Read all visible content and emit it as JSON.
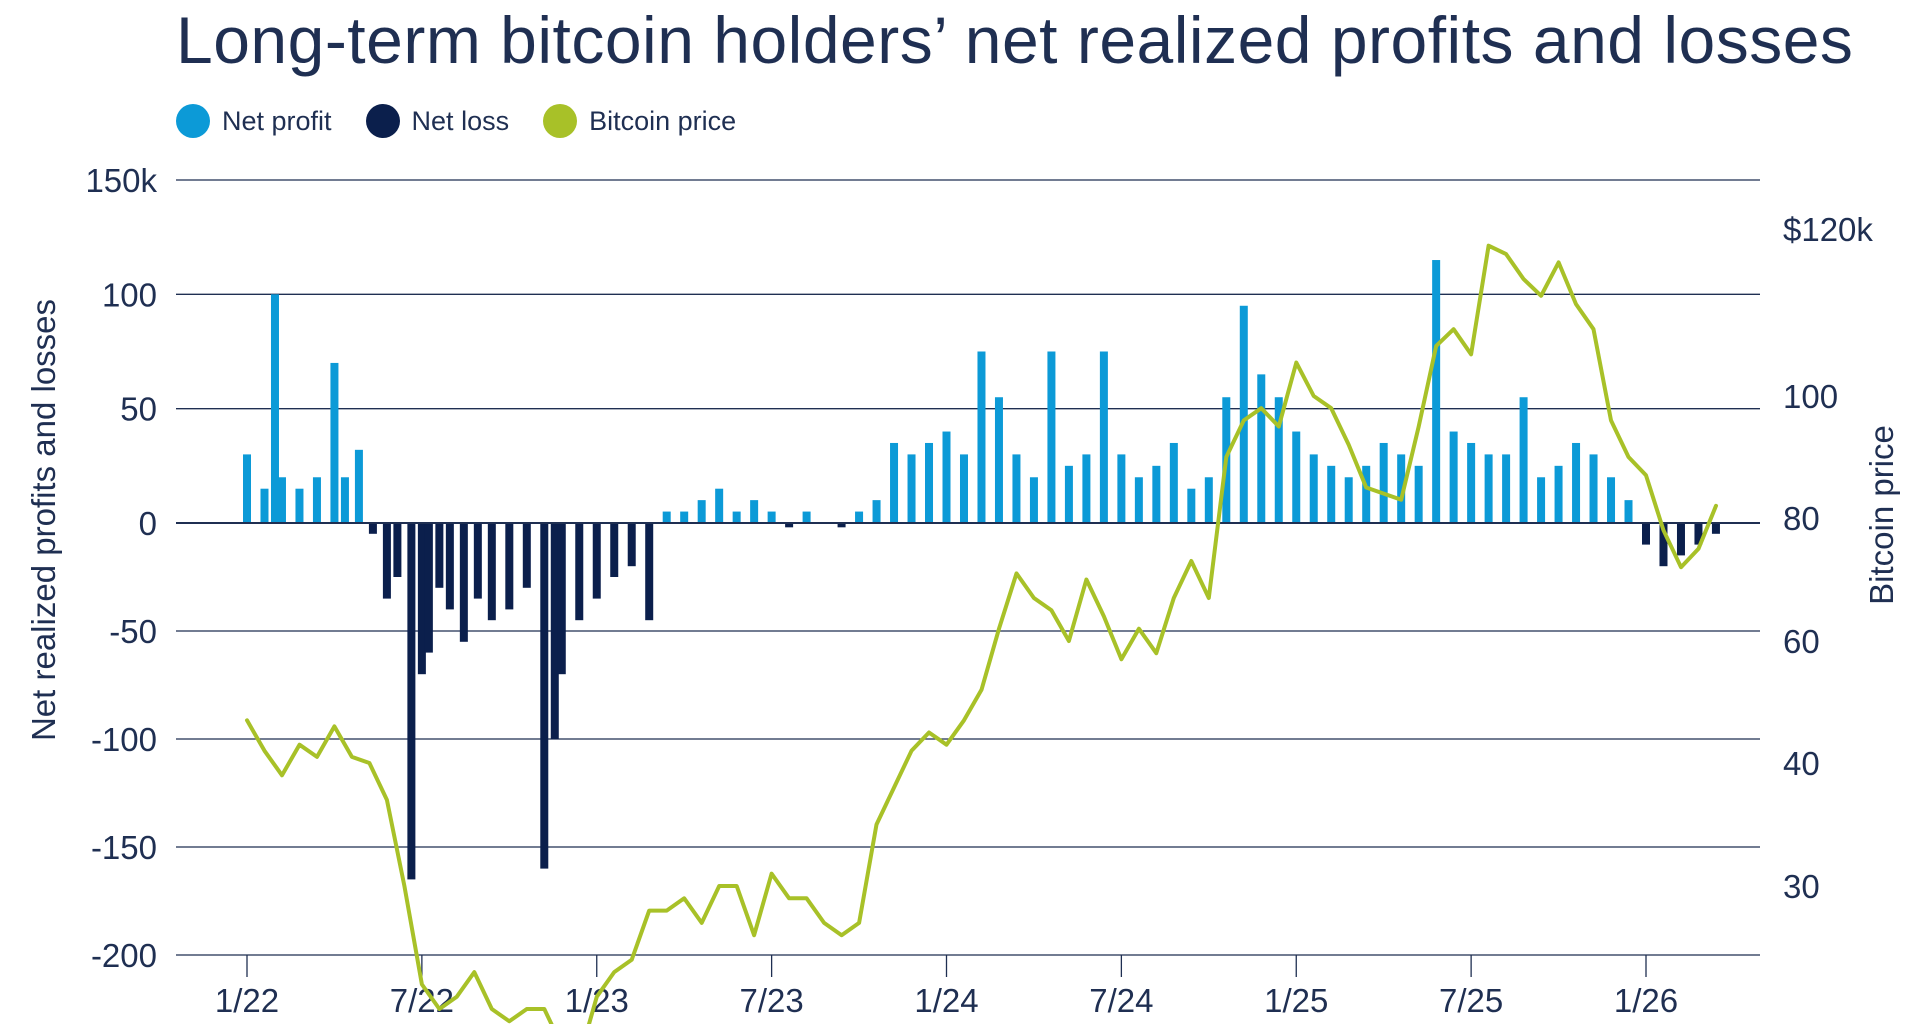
{
  "title": "Long-term bitcoin holders’ net realized profits and losses",
  "legend": [
    {
      "label": "Net profit",
      "color": "#0c9ad7",
      "icon": "circle-swatch"
    },
    {
      "label": "Net loss",
      "color": "#0b1f4c",
      "icon": "circle-swatch"
    },
    {
      "label": "Bitcoin price",
      "color": "#a8c128",
      "icon": "circle-swatch"
    }
  ],
  "chart_data": {
    "type": "bar",
    "title": "Long-term bitcoin holders’ net realized profits and losses",
    "xlabel": "",
    "ylabel": "Net realized profits and losses",
    "y2label": "Bitcoin price",
    "ylim": [
      -200,
      150
    ],
    "y2lim": [
      20,
      130
    ],
    "yticks": [
      "150k",
      "100",
      "50",
      "0",
      "-50",
      "-100",
      "-150",
      "-200"
    ],
    "y2ticks": [
      "$120k",
      "100",
      "80",
      "60",
      "40",
      "30"
    ],
    "xticks": [
      "1/22",
      "7/22",
      "1/23",
      "7/23",
      "1/24",
      "7/24",
      "1/25",
      "7/25",
      "1/26"
    ],
    "grid": true,
    "legend_position": "top-left",
    "series": [
      {
        "name": "Net realized profits and losses",
        "kind": "bar",
        "positive_label": "Net profit",
        "negative_label": "Net loss",
        "x": [
          2022.0,
          2022.05,
          2022.08,
          2022.1,
          2022.15,
          2022.2,
          2022.25,
          2022.28,
          2022.32,
          2022.36,
          2022.4,
          2022.43,
          2022.47,
          2022.5,
          2022.52,
          2022.55,
          2022.58,
          2022.62,
          2022.66,
          2022.7,
          2022.75,
          2022.8,
          2022.85,
          2022.88,
          2022.9,
          2022.95,
          2023.0,
          2023.05,
          2023.1,
          2023.15,
          2023.2,
          2023.25,
          2023.3,
          2023.35,
          2023.4,
          2023.45,
          2023.5,
          2023.55,
          2023.6,
          2023.65,
          2023.7,
          2023.75,
          2023.8,
          2023.85,
          2023.9,
          2023.95,
          2024.0,
          2024.05,
          2024.1,
          2024.15,
          2024.2,
          2024.25,
          2024.3,
          2024.35,
          2024.4,
          2024.45,
          2024.5,
          2024.55,
          2024.6,
          2024.65,
          2024.7,
          2024.75,
          2024.8,
          2024.85,
          2024.9,
          2024.95,
          2025.0,
          2025.05,
          2025.1,
          2025.15,
          2025.2,
          2025.25,
          2025.3,
          2025.35,
          2025.4,
          2025.45,
          2025.5,
          2025.55,
          2025.6,
          2025.65,
          2025.7,
          2025.75,
          2025.8,
          2025.85,
          2025.9,
          2025.95,
          2026.0,
          2026.05,
          2026.1,
          2026.15,
          2026.2
        ],
        "values": [
          30,
          15,
          100,
          20,
          15,
          20,
          70,
          20,
          32,
          -5,
          -35,
          -25,
          -165,
          -70,
          -60,
          -30,
          -40,
          -55,
          -35,
          -45,
          -40,
          -30,
          -160,
          -100,
          -70,
          -45,
          -35,
          -25,
          -20,
          -45,
          5,
          5,
          10,
          15,
          5,
          10,
          5,
          -2,
          5,
          0,
          -2,
          5,
          10,
          35,
          30,
          35,
          40,
          30,
          75,
          55,
          30,
          20,
          75,
          25,
          30,
          75,
          30,
          20,
          25,
          35,
          15,
          20,
          55,
          95,
          65,
          55,
          40,
          30,
          25,
          20,
          25,
          35,
          30,
          25,
          115,
          40,
          35,
          30,
          30,
          55,
          20,
          25,
          35,
          30,
          20,
          10,
          -10,
          -20,
          -15,
          -10,
          -5
        ]
      },
      {
        "name": "Bitcoin price",
        "kind": "line",
        "axis": "right",
        "x": [
          2022.0,
          2022.05,
          2022.1,
          2022.15,
          2022.2,
          2022.25,
          2022.3,
          2022.35,
          2022.4,
          2022.45,
          2022.5,
          2022.55,
          2022.6,
          2022.65,
          2022.7,
          2022.75,
          2022.8,
          2022.85,
          2022.9,
          2022.95,
          2023.0,
          2023.05,
          2023.1,
          2023.15,
          2023.2,
          2023.25,
          2023.3,
          2023.35,
          2023.4,
          2023.45,
          2023.5,
          2023.55,
          2023.6,
          2023.65,
          2023.7,
          2023.75,
          2023.8,
          2023.85,
          2023.9,
          2023.95,
          2024.0,
          2024.05,
          2024.1,
          2024.15,
          2024.2,
          2024.25,
          2024.3,
          2024.35,
          2024.4,
          2024.45,
          2024.5,
          2024.55,
          2024.6,
          2024.65,
          2024.7,
          2024.75,
          2024.8,
          2024.85,
          2024.9,
          2024.95,
          2025.0,
          2025.05,
          2025.1,
          2025.15,
          2025.2,
          2025.25,
          2025.3,
          2025.35,
          2025.4,
          2025.45,
          2025.5,
          2025.55,
          2025.6,
          2025.65,
          2025.7,
          2025.75,
          2025.8,
          2025.85,
          2025.9,
          2025.95,
          2026.0,
          2026.05,
          2026.1,
          2026.15,
          2026.2
        ],
        "values": [
          47,
          42,
          39,
          43,
          41,
          46,
          41,
          40,
          37,
          30,
          22,
          20,
          21,
          23,
          20,
          19,
          20,
          20,
          17,
          16,
          21,
          23,
          24,
          28,
          28,
          29,
          27,
          30,
          30,
          26,
          31,
          29,
          29,
          27,
          26,
          27,
          35,
          38,
          42,
          45,
          43,
          47,
          52,
          62,
          71,
          67,
          65,
          60,
          70,
          64,
          57,
          62,
          58,
          67,
          73,
          67,
          90,
          96,
          98,
          95,
          104,
          100,
          98,
          92,
          85,
          84,
          83,
          95,
          106,
          108,
          105,
          118,
          117,
          114,
          112,
          116,
          111,
          108,
          96,
          90,
          87,
          78,
          72,
          75,
          82
        ]
      }
    ]
  }
}
